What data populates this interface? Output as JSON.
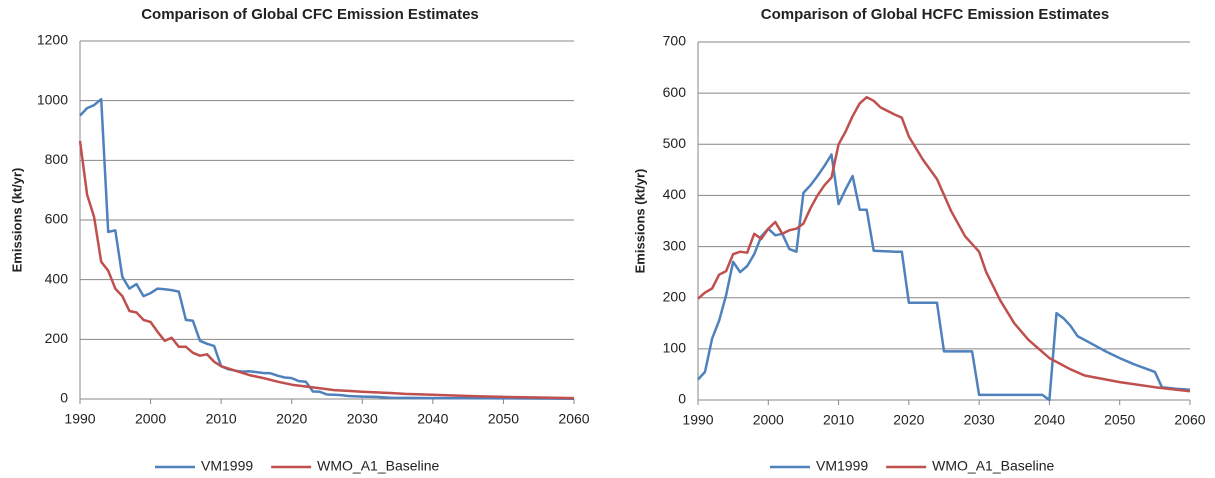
{
  "chart_data": [
    {
      "type": "line",
      "title": "Comparison of Global CFC Emission Estimates",
      "y_label": "Emissions (kt/yr)",
      "xlim": [
        1990,
        2060
      ],
      "xticks": [
        1990,
        2000,
        2010,
        2020,
        2030,
        2040,
        2050,
        2060
      ],
      "ylim": [
        0,
        1200
      ],
      "yticks": [
        0,
        200,
        400,
        600,
        800,
        1000,
        1200
      ],
      "grid": true,
      "legend": "bottom",
      "series": [
        {
          "name": "VM1999",
          "color": "#4f81bd",
          "x": [
            1990,
            1991,
            1992,
            1993,
            1994,
            1995,
            1996,
            1997,
            1998,
            1999,
            2000,
            2001,
            2002,
            2003,
            2004,
            2005,
            2006,
            2007,
            2008,
            2009,
            2010,
            2011,
            2012,
            2013,
            2014,
            2015,
            2016,
            2017,
            2018,
            2019,
            2020,
            2021,
            2022,
            2023,
            2024,
            2025,
            2026,
            2027,
            2028,
            2030,
            2032,
            2034,
            2040,
            2050,
            2060
          ],
          "values": [
            950,
            975,
            985,
            1005,
            560,
            565,
            410,
            370,
            385,
            345,
            355,
            370,
            368,
            365,
            360,
            265,
            262,
            195,
            185,
            178,
            110,
            100,
            95,
            92,
            93,
            90,
            87,
            86,
            78,
            72,
            70,
            60,
            58,
            25,
            24,
            15,
            14,
            13,
            10,
            8,
            7,
            4,
            3,
            2,
            1
          ]
        },
        {
          "name": "WMO_A1_Baseline",
          "color": "#c0504d",
          "x": [
            1990,
            1991,
            1992,
            1993,
            1994,
            1995,
            1996,
            1997,
            1998,
            1999,
            2000,
            2001,
            2002,
            2003,
            2004,
            2005,
            2006,
            2007,
            2008,
            2009,
            2010,
            2012,
            2014,
            2016,
            2018,
            2020,
            2022,
            2024,
            2026,
            2028,
            2030,
            2032,
            2034,
            2036,
            2040,
            2045,
            2050,
            2055,
            2060
          ],
          "values": [
            865,
            685,
            610,
            460,
            430,
            370,
            345,
            295,
            290,
            265,
            258,
            225,
            195,
            205,
            175,
            175,
            155,
            145,
            150,
            125,
            110,
            95,
            80,
            70,
            58,
            48,
            42,
            36,
            30,
            27,
            24,
            22,
            20,
            17,
            14,
            10,
            7,
            5,
            3
          ]
        }
      ]
    },
    {
      "type": "line",
      "title": "Comparison of Global HCFC Emission Estimates",
      "y_label": "Emissions (kt/yr)",
      "xlim": [
        1990,
        2060
      ],
      "xticks": [
        1990,
        2000,
        2010,
        2020,
        2030,
        2040,
        2050,
        2060
      ],
      "ylim": [
        0,
        700
      ],
      "yticks": [
        0,
        100,
        200,
        300,
        400,
        500,
        600,
        700
      ],
      "grid": true,
      "legend": "bottom",
      "series": [
        {
          "name": "VM1999",
          "color": "#4f81bd",
          "x": [
            1990,
            1991,
            1992,
            1993,
            1994,
            1995,
            1996,
            1997,
            1998,
            1999,
            2000,
            2001,
            2002,
            2003,
            2004,
            2005,
            2006,
            2007,
            2008,
            2009,
            2010,
            2011,
            2012,
            2013,
            2014,
            2015,
            2018,
            2019,
            2020,
            2024,
            2025,
            2029,
            2030,
            2039,
            2040,
            2041,
            2042,
            2043,
            2044,
            2046,
            2048,
            2050,
            2052,
            2054,
            2055,
            2056,
            2058,
            2060
          ],
          "values": [
            40,
            55,
            120,
            155,
            205,
            270,
            250,
            262,
            285,
            320,
            335,
            322,
            325,
            295,
            290,
            405,
            420,
            438,
            458,
            480,
            383,
            412,
            438,
            372,
            372,
            292,
            290,
            290,
            190,
            190,
            95,
            95,
            10,
            10,
            0,
            170,
            160,
            145,
            125,
            110,
            95,
            82,
            70,
            60,
            55,
            25,
            22,
            20
          ]
        },
        {
          "name": "WMO_A1_Baseline",
          "color": "#c0504d",
          "x": [
            1990,
            1991,
            1992,
            1993,
            1994,
            1995,
            1996,
            1997,
            1998,
            1999,
            2000,
            2001,
            2002,
            2003,
            2004,
            2005,
            2006,
            2007,
            2008,
            2009,
            2010,
            2011,
            2012,
            2013,
            2014,
            2015,
            2016,
            2018,
            2019,
            2020,
            2022,
            2024,
            2026,
            2028,
            2030,
            2031,
            2033,
            2035,
            2037,
            2040,
            2043,
            2045,
            2050,
            2055,
            2060
          ],
          "values": [
            198,
            210,
            218,
            245,
            252,
            285,
            290,
            288,
            325,
            315,
            335,
            348,
            325,
            332,
            335,
            345,
            375,
            400,
            420,
            435,
            500,
            525,
            555,
            580,
            592,
            585,
            572,
            558,
            552,
            515,
            470,
            432,
            370,
            320,
            290,
            250,
            195,
            150,
            118,
            82,
            60,
            48,
            35,
            25,
            17
          ]
        }
      ]
    }
  ]
}
